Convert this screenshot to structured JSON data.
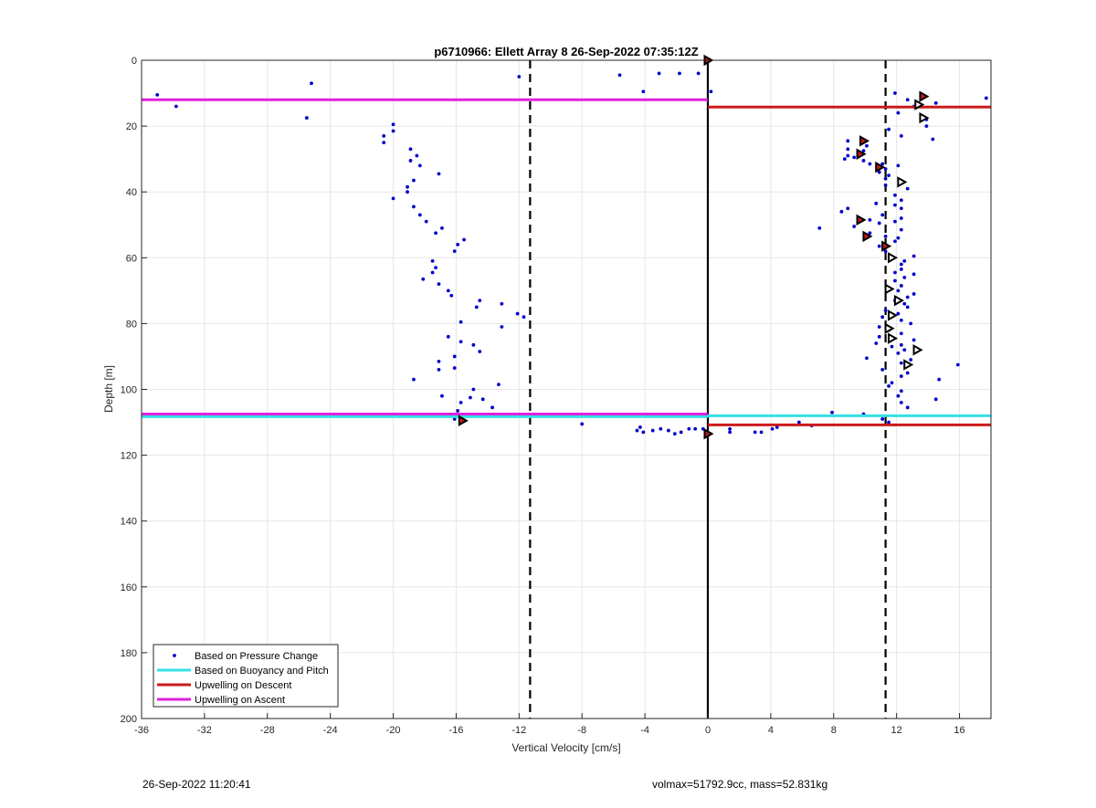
{
  "chart_data": {
    "type": "scatter",
    "title": "p6710966: Ellett Array 8 26-Sep-2022 07:35:12Z",
    "xlabel": "Vertical Velocity [cm/s]",
    "ylabel": "Depth [m]",
    "xlim": [
      -36,
      18
    ],
    "ylim": [
      0,
      200
    ],
    "y_reversed": true,
    "grid": true,
    "x_ticks": [
      -36,
      -32,
      -28,
      -24,
      -20,
      -16,
      -12,
      -8,
      -4,
      0,
      4,
      8,
      12,
      16
    ],
    "y_ticks": [
      0,
      20,
      40,
      60,
      80,
      100,
      120,
      140,
      160,
      180,
      200
    ],
    "legend_position": "bottom-left",
    "reference_lines": {
      "vertical_dashed": [
        -11.3,
        11.3
      ],
      "vertical_solid": [
        0
      ]
    },
    "series": [
      {
        "name": "Based on Pressure Change",
        "color": "#0000cc",
        "points": [
          [
            -35,
            10.5
          ],
          [
            -33.8,
            14
          ],
          [
            -25.2,
            7
          ],
          [
            -25.5,
            17.5
          ],
          [
            -12,
            5
          ],
          [
            -5.6,
            4.5
          ],
          [
            -4.1,
            9.5
          ],
          [
            -3.1,
            4
          ],
          [
            -1.8,
            4
          ],
          [
            -0.6,
            4
          ],
          [
            0.2,
            9.5
          ],
          [
            -20,
            19.5
          ],
          [
            -20,
            21.5
          ],
          [
            -20.6,
            23
          ],
          [
            -20.6,
            25
          ],
          [
            -18.9,
            27
          ],
          [
            -18.5,
            29
          ],
          [
            -18.9,
            30.5
          ],
          [
            -18.3,
            32
          ],
          [
            -17.1,
            34.5
          ],
          [
            -18.7,
            36.5
          ],
          [
            -19.1,
            38.5
          ],
          [
            -19.1,
            40
          ],
          [
            -20,
            42
          ],
          [
            -18.7,
            44.5
          ],
          [
            -18.3,
            47
          ],
          [
            -17.9,
            49
          ],
          [
            -16.9,
            51
          ],
          [
            -17.3,
            52.5
          ],
          [
            -15.5,
            54.5
          ],
          [
            -15.9,
            56
          ],
          [
            -16.1,
            58
          ],
          [
            -17.5,
            61
          ],
          [
            -17.3,
            63
          ],
          [
            -17.5,
            64.5
          ],
          [
            -18.1,
            66.5
          ],
          [
            -17.1,
            68
          ],
          [
            -16.5,
            70
          ],
          [
            -16.3,
            71.5
          ],
          [
            -14.5,
            73
          ],
          [
            -14.7,
            75
          ],
          [
            -13.1,
            74
          ],
          [
            -12.1,
            77
          ],
          [
            -11.7,
            78
          ],
          [
            -13.1,
            81
          ],
          [
            -15.7,
            79.5
          ],
          [
            -16.5,
            84
          ],
          [
            -15.7,
            85.5
          ],
          [
            -14.9,
            86.5
          ],
          [
            -14.5,
            88.5
          ],
          [
            -16.1,
            90
          ],
          [
            -17.1,
            91.5
          ],
          [
            -17.1,
            94
          ],
          [
            -16.1,
            93.5
          ],
          [
            -18.7,
            97
          ],
          [
            -13.3,
            98.5
          ],
          [
            -14.9,
            100
          ],
          [
            -15.1,
            102.5
          ],
          [
            -16.9,
            102
          ],
          [
            -14.3,
            103
          ],
          [
            -13.7,
            105.5
          ],
          [
            -15.7,
            104
          ],
          [
            -15.9,
            106.5
          ],
          [
            -16.1,
            109
          ],
          [
            -8,
            110.5
          ],
          [
            -4.3,
            111.5
          ],
          [
            -4.5,
            112.5
          ],
          [
            -4.1,
            113
          ],
          [
            -3.5,
            112.5
          ],
          [
            -3,
            112
          ],
          [
            -2.5,
            112.5
          ],
          [
            -2.1,
            113.5
          ],
          [
            -1.7,
            113
          ],
          [
            -1.2,
            112
          ],
          [
            -0.8,
            112
          ],
          [
            -0.3,
            112
          ],
          [
            1.4,
            112
          ],
          [
            1.4,
            113
          ],
          [
            3,
            113
          ],
          [
            3.4,
            113
          ],
          [
            4.1,
            112
          ],
          [
            4.4,
            111.5
          ],
          [
            5.8,
            110
          ],
          [
            6.6,
            111
          ],
          [
            7.9,
            107
          ],
          [
            9.9,
            107.5
          ],
          [
            11.1,
            109
          ],
          [
            11.5,
            110
          ],
          [
            11.9,
            10
          ],
          [
            12.7,
            12
          ],
          [
            13.1,
            14
          ],
          [
            12.1,
            16
          ],
          [
            13.9,
            18
          ],
          [
            13.9,
            20
          ],
          [
            11.5,
            21
          ],
          [
            14.3,
            24
          ],
          [
            12.3,
            23
          ],
          [
            8.9,
            24.5
          ],
          [
            10.1,
            26
          ],
          [
            8.9,
            27
          ],
          [
            9.9,
            27.5
          ],
          [
            8.9,
            29
          ],
          [
            9.3,
            29.5
          ],
          [
            8.7,
            30
          ],
          [
            9.9,
            30.5
          ],
          [
            10.3,
            31.5
          ],
          [
            11.1,
            31.5
          ],
          [
            10.9,
            32.5
          ],
          [
            11.3,
            33
          ],
          [
            12.1,
            32
          ],
          [
            10.9,
            34
          ],
          [
            11.5,
            35
          ],
          [
            11.3,
            36
          ],
          [
            12.3,
            37
          ],
          [
            11.3,
            38
          ],
          [
            12.7,
            39
          ],
          [
            11.9,
            41
          ],
          [
            12.3,
            42.5
          ],
          [
            10.7,
            43.5
          ],
          [
            11.9,
            44
          ],
          [
            12.3,
            45
          ],
          [
            8.9,
            45
          ],
          [
            8.5,
            46
          ],
          [
            11.1,
            47
          ],
          [
            10.3,
            48.5
          ],
          [
            11.9,
            49
          ],
          [
            12.3,
            48
          ],
          [
            10.9,
            49.5
          ],
          [
            9.3,
            50.5
          ],
          [
            7.1,
            51
          ],
          [
            12.3,
            51.5
          ],
          [
            10.3,
            52.5
          ],
          [
            11.3,
            53.5
          ],
          [
            12.1,
            54
          ],
          [
            11.9,
            55
          ],
          [
            10.9,
            56.5
          ],
          [
            11.3,
            58
          ],
          [
            13.1,
            59.5
          ],
          [
            12.5,
            61
          ],
          [
            12.3,
            62
          ],
          [
            12.3,
            63.5
          ],
          [
            11.9,
            64.5
          ],
          [
            13.1,
            65
          ],
          [
            12.5,
            66
          ],
          [
            11.9,
            67
          ],
          [
            12.3,
            68.5
          ],
          [
            12.1,
            70
          ],
          [
            13.1,
            71
          ],
          [
            12.7,
            72
          ],
          [
            11.9,
            73
          ],
          [
            12.5,
            74
          ],
          [
            12.7,
            75
          ],
          [
            11.3,
            76
          ],
          [
            12.1,
            77
          ],
          [
            11.1,
            78
          ],
          [
            12.3,
            79
          ],
          [
            12.9,
            80
          ],
          [
            10.9,
            81
          ],
          [
            11.5,
            82
          ],
          [
            12.3,
            83
          ],
          [
            10.9,
            84
          ],
          [
            13.1,
            85
          ],
          [
            10.7,
            86
          ],
          [
            12.3,
            86.5
          ],
          [
            11.7,
            87
          ],
          [
            12.5,
            88
          ],
          [
            12.1,
            89
          ],
          [
            10.1,
            90.5
          ],
          [
            12.9,
            91
          ],
          [
            12.3,
            92
          ],
          [
            15.9,
            92.5
          ],
          [
            11.1,
            94
          ],
          [
            12.7,
            95
          ],
          [
            12.3,
            96
          ],
          [
            14.7,
            97
          ],
          [
            11.7,
            98
          ],
          [
            11.5,
            99
          ],
          [
            12.3,
            100.5
          ],
          [
            12.1,
            102
          ],
          [
            14.5,
            103
          ],
          [
            12.3,
            104
          ],
          [
            12.7,
            105.5
          ],
          [
            17.7,
            11.5
          ],
          [
            14.5,
            13
          ]
        ]
      },
      {
        "name": "Based on Buoyancy and Pitch",
        "color": "#33e0e6",
        "segments": [
          {
            "x0": -36,
            "x1": 0,
            "y": 108.3
          },
          {
            "x0": 0,
            "x1": 18,
            "y": 108
          }
        ]
      },
      {
        "name": "Upwelling on Descent",
        "color": "#cc1a1a",
        "segments": [
          {
            "x0": 0,
            "x1": 18,
            "y": 14.2
          },
          {
            "x0": 0,
            "x1": 18,
            "y": 110.8
          }
        ]
      },
      {
        "name": "Upwelling on Ascent",
        "color": "#dd22dd",
        "segments": [
          {
            "x0": -36,
            "x1": 0,
            "y": 12
          },
          {
            "x0": -36,
            "x1": 0,
            "y": 107.5
          }
        ]
      }
    ],
    "marker_points": [
      {
        "x": 0,
        "y": 0,
        "style": "filled"
      },
      {
        "x": 0,
        "y": 113.5,
        "style": "filled"
      },
      {
        "x": -15.6,
        "y": 109.5,
        "style": "filled"
      },
      {
        "x": 13.7,
        "y": 11,
        "style": "filled"
      },
      {
        "x": 13.4,
        "y": 13.5,
        "style": "open"
      },
      {
        "x": 13.7,
        "y": 17.5,
        "style": "open"
      },
      {
        "x": 9.9,
        "y": 24.5,
        "style": "filled"
      },
      {
        "x": 9.7,
        "y": 28.5,
        "style": "filled"
      },
      {
        "x": 10.9,
        "y": 32.5,
        "style": "filled"
      },
      {
        "x": 12.3,
        "y": 37,
        "style": "open"
      },
      {
        "x": 9.7,
        "y": 48.5,
        "style": "filled"
      },
      {
        "x": 10.1,
        "y": 53.5,
        "style": "filled"
      },
      {
        "x": 11.3,
        "y": 56.5,
        "style": "filled"
      },
      {
        "x": 11.7,
        "y": 60,
        "style": "open"
      },
      {
        "x": 11.5,
        "y": 69.5,
        "style": "open"
      },
      {
        "x": 12.1,
        "y": 73,
        "style": "open"
      },
      {
        "x": 11.7,
        "y": 77.5,
        "style": "open"
      },
      {
        "x": 11.5,
        "y": 81.5,
        "style": "open"
      },
      {
        "x": 11.7,
        "y": 84.5,
        "style": "open"
      },
      {
        "x": 13.3,
        "y": 88,
        "style": "open"
      },
      {
        "x": 12.7,
        "y": 92.5,
        "style": "open"
      }
    ]
  },
  "footer": {
    "timestamp": "26-Sep-2022 11:20:41",
    "info": "volmax=51792.9cc, mass=52.831kg"
  }
}
